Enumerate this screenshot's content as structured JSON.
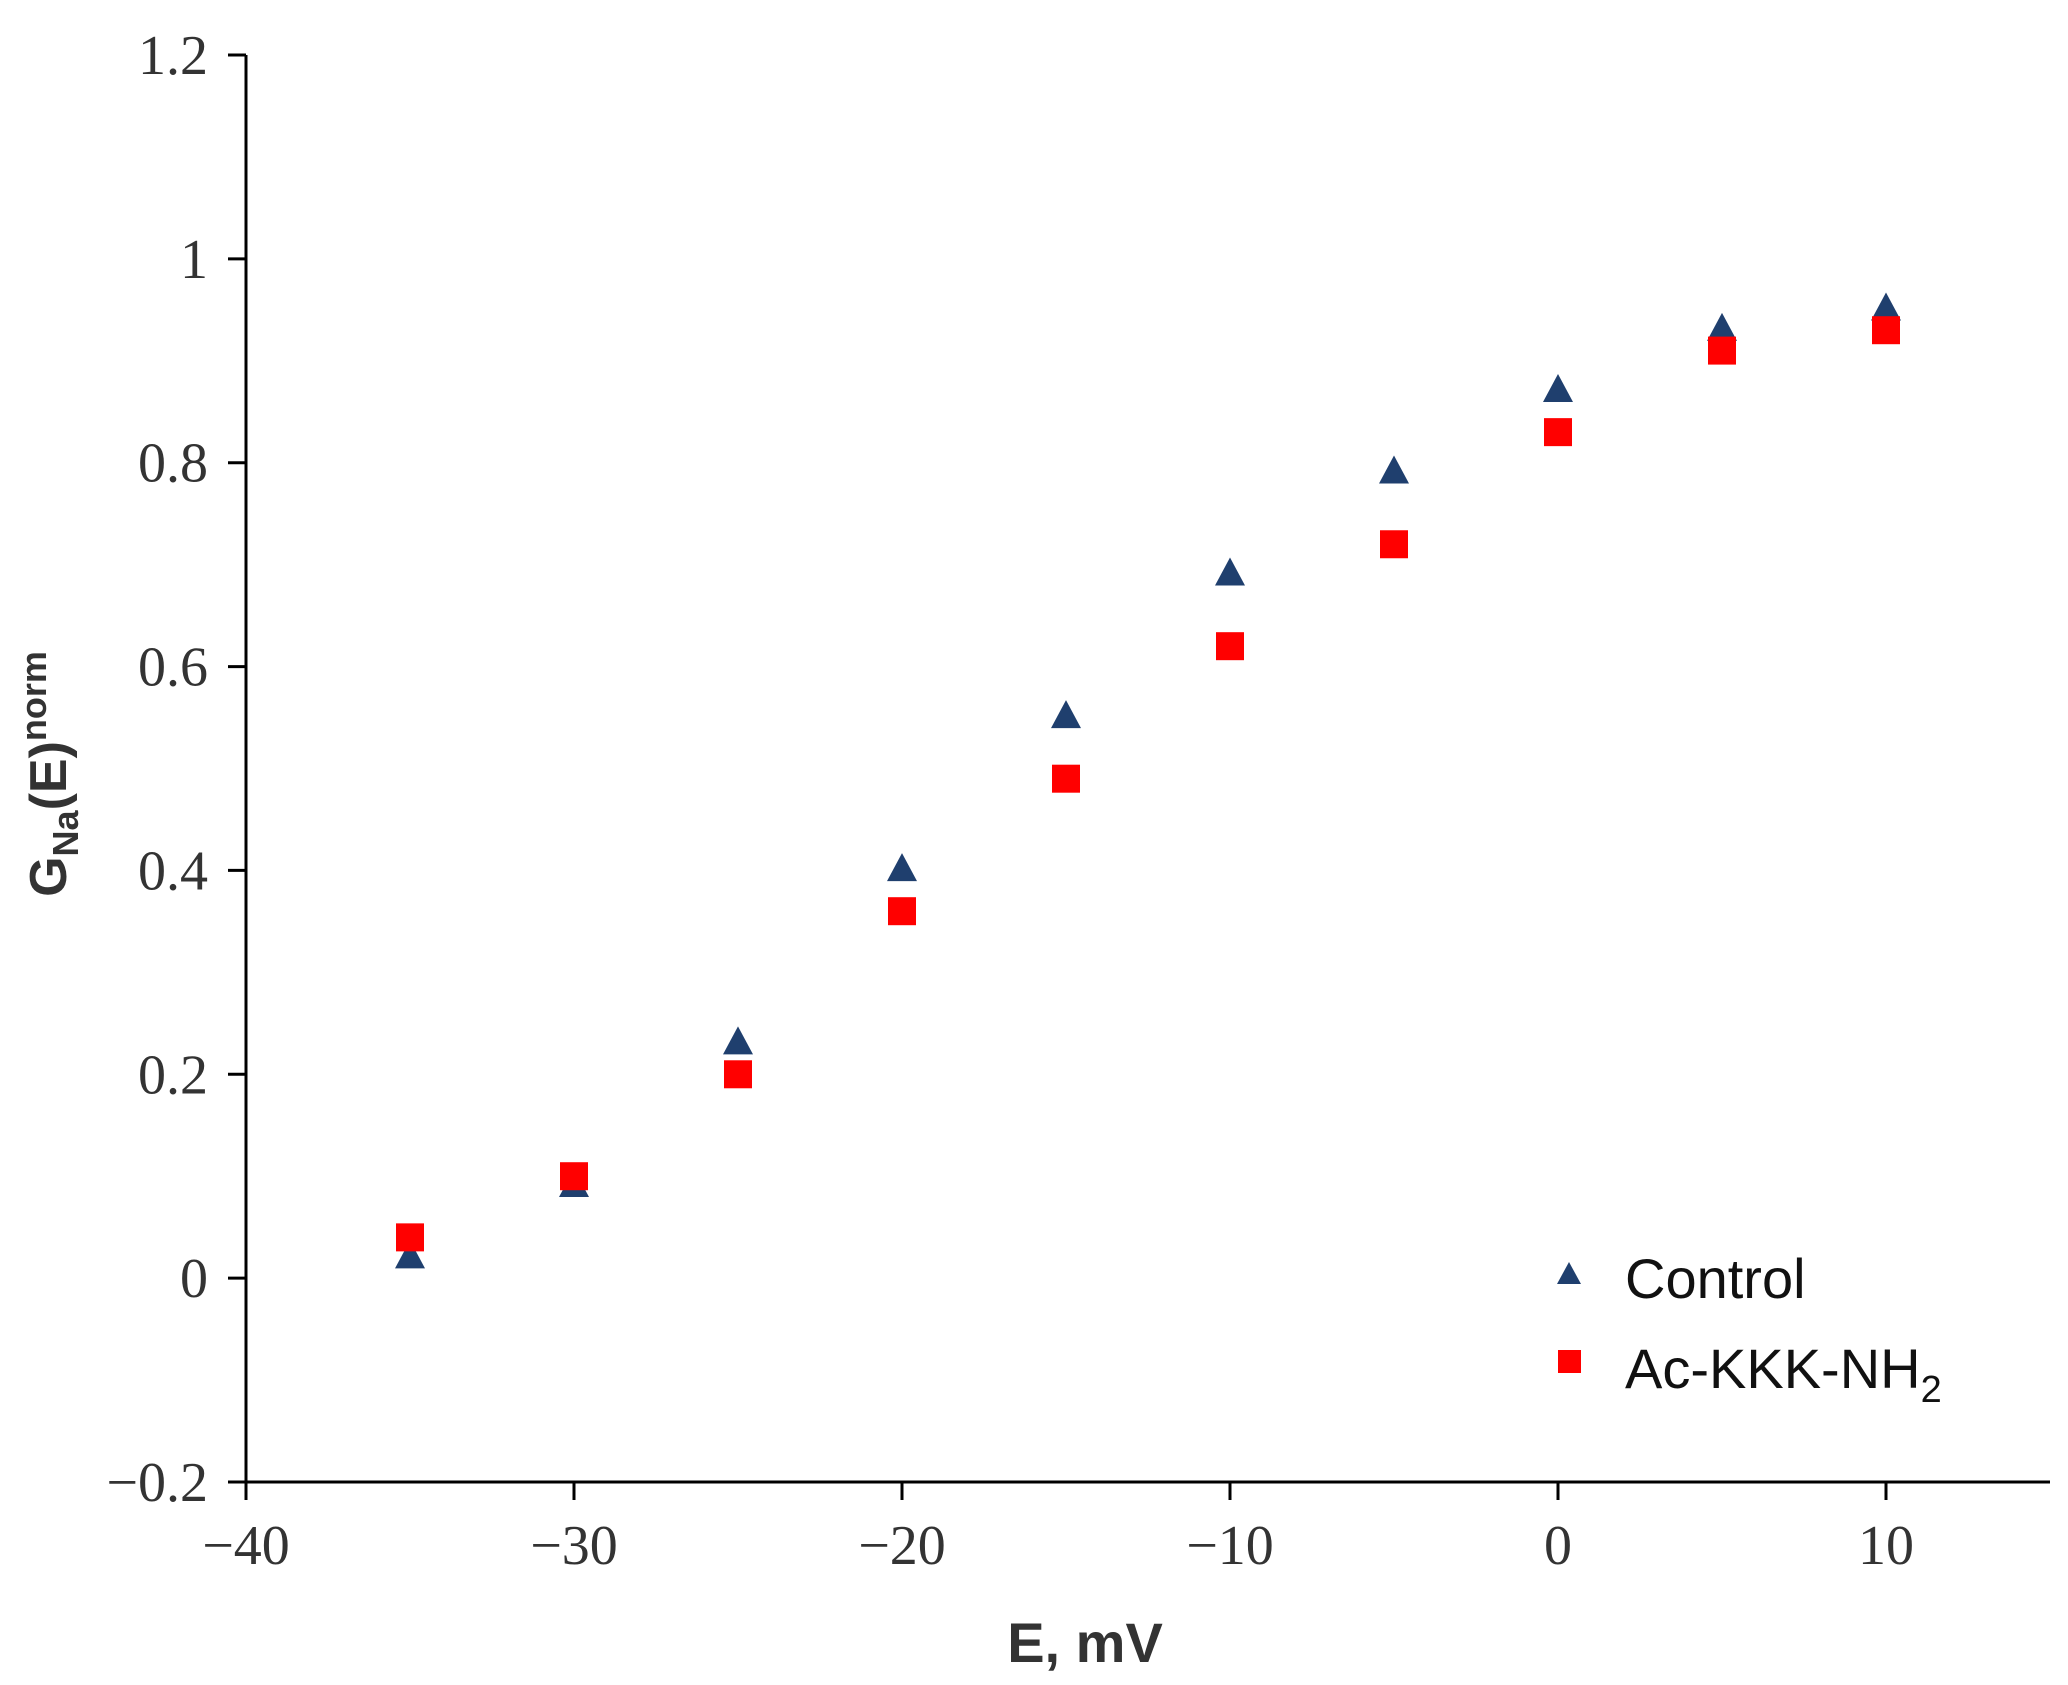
{
  "chart_data": {
    "type": "scatter",
    "xlabel": "E, mV",
    "ylabel": {
      "main": "G",
      "sub": "Na",
      "mid": "(E)",
      "sup": "norm"
    },
    "xlim": [
      -40,
      15
    ],
    "ylim": [
      -0.2,
      1.2
    ],
    "x_ticks": [
      -40,
      -30,
      -20,
      -10,
      0,
      10
    ],
    "x_tick_labels": [
      "−40",
      "−30",
      "−20",
      "−10",
      "0",
      "10"
    ],
    "y_ticks": [
      -0.2,
      0,
      0.2,
      0.4,
      0.6,
      0.8,
      1,
      1.2
    ],
    "y_tick_labels": [
      "−0.2",
      "0",
      "0.2",
      "0.4",
      "0.6",
      "0.8",
      "1",
      "1.2"
    ],
    "grid": false,
    "legend_position": "bottom-right",
    "series": [
      {
        "name": "Control",
        "marker": "triangle",
        "color": "#1f3f6e",
        "x": [
          -35,
          -30,
          -25,
          -20,
          -15,
          -10,
          -5,
          0,
          5,
          10
        ],
        "y": [
          0.02,
          0.09,
          0.23,
          0.4,
          0.55,
          0.69,
          0.79,
          0.87,
          0.93,
          0.95
        ]
      },
      {
        "name": "Ac-KKK-NH",
        "name_sub": "2",
        "marker": "square",
        "color": "#ff0000",
        "x": [
          -35,
          -30,
          -25,
          -20,
          -15,
          -10,
          -5,
          0,
          5,
          10
        ],
        "y": [
          0.04,
          0.1,
          0.2,
          0.36,
          0.49,
          0.62,
          0.72,
          0.83,
          0.91,
          0.93
        ]
      }
    ]
  }
}
